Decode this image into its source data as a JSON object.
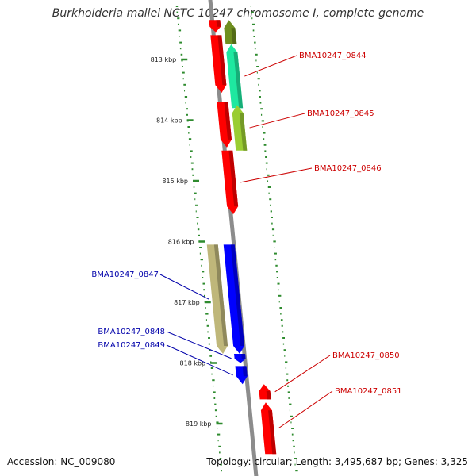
{
  "header": {
    "title": "Burkholderia mallei NCTC 10247 chromosome I, complete genome"
  },
  "footer": {
    "accession": "Accession: NC_009080",
    "topology": "Topology: circular; Length: 3,495,687 bp; Genes: 3,325"
  },
  "ruler": {
    "ticks": [
      {
        "kbp": 813,
        "label": "813 kbp"
      },
      {
        "kbp": 814,
        "label": "814 kbp"
      },
      {
        "kbp": 815,
        "label": "815 kbp"
      },
      {
        "kbp": 816,
        "label": "816 kbp"
      },
      {
        "kbp": 817,
        "label": "817 kbp"
      },
      {
        "kbp": 818,
        "label": "818 kbp"
      },
      {
        "kbp": 819,
        "label": "819 kbp"
      }
    ]
  },
  "genes": [
    {
      "label": "",
      "strand": "reverse",
      "color": "#6f8f1f",
      "start_kbp": 812.35,
      "end_kbp": 812.75
    },
    {
      "label": "",
      "strand": "forward",
      "color": "#ff0000",
      "start_kbp": 812.35,
      "end_kbp": 812.55
    },
    {
      "label": "BMA10247_0844",
      "strand": "reverse",
      "color": "#1ee8a0",
      "start_kbp": 812.75,
      "end_kbp": 813.8
    },
    {
      "label": "",
      "strand": "forward",
      "color": "#ff0000",
      "start_kbp": 812.6,
      "end_kbp": 813.55
    },
    {
      "label": "BMA10247_0845",
      "strand": "reverse",
      "color": "#9acd32",
      "start_kbp": 813.75,
      "end_kbp": 814.5
    },
    {
      "label": "",
      "strand": "forward",
      "color": "#ff0000",
      "start_kbp": 813.7,
      "end_kbp": 814.45
    },
    {
      "label": "BMA10247_0846",
      "strand": "forward",
      "color": "#ff0000",
      "start_kbp": 814.5,
      "end_kbp": 815.55
    },
    {
      "label": "BMA10247_0847",
      "strand": "forward",
      "color": "#bfb77a",
      "start_kbp": 816.05,
      "end_kbp": 817.85
    },
    {
      "label": "",
      "strand": "forward",
      "color": "#0000ff",
      "start_kbp": 816.05,
      "end_kbp": 817.85
    },
    {
      "label": "BMA10247_0848",
      "strand": "forward",
      "color": "#0000ff",
      "start_kbp": 817.85,
      "end_kbp": 818.0
    },
    {
      "label": "BMA10247_0849",
      "strand": "forward",
      "color": "#0000ff",
      "start_kbp": 818.05,
      "end_kbp": 818.35
    },
    {
      "label": "BMA10247_0850",
      "strand": "reverse",
      "color": "#ff0000",
      "start_kbp": 818.35,
      "end_kbp": 818.6
    },
    {
      "label": "BMA10247_0851",
      "strand": "reverse",
      "color": "#ff0000",
      "start_kbp": 818.65,
      "end_kbp": 819.5
    }
  ],
  "colors": {
    "backbone": "#8c8c8c",
    "gc_skew_dots": "#2e8b2e",
    "forward_label": "#cc0000",
    "reverse_label": "#0000aa"
  }
}
